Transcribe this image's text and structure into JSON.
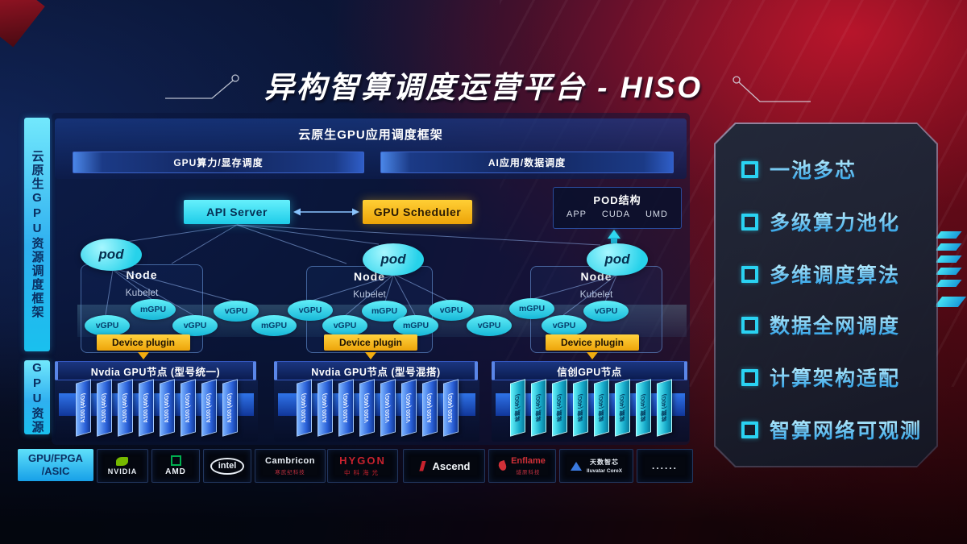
{
  "title": "异构智算调度运营平台 - HISO",
  "sidebar": {
    "frame_label": "云原生GPU资源调度框架",
    "gpu_label": "GPU资源",
    "chip_label": "GPU/FPGA\n/ASIC"
  },
  "framework": {
    "title": "云原生GPU应用调度框架",
    "bars": [
      "GPU算力/显存调度",
      "AI应用/数据调度"
    ]
  },
  "scheduler": {
    "api_server": "API Server",
    "gpu_scheduler": "GPU Scheduler"
  },
  "pod_structure": {
    "title": "POD结构",
    "items": [
      "APP",
      "CUDA",
      "UMD"
    ]
  },
  "pods": [
    "pod",
    "pod",
    "pod"
  ],
  "nodes": [
    {
      "label": "Node",
      "sub": "Kubelet",
      "device_plugin": "Device plugin"
    },
    {
      "label": "Node",
      "sub": "Kubelet",
      "device_plugin": "Device plugin"
    },
    {
      "label": "Node",
      "sub": "Kubelet",
      "device_plugin": "Device plugin"
    }
  ],
  "gpu_ellipses": [
    "vGPU",
    "mGPU",
    "vGPU",
    "vGPU",
    "mGPU",
    "vGPU",
    "vGPU",
    "mGPU",
    "mGPU",
    "vGPU",
    "vGPU",
    "mGPU",
    "vGPU",
    "vGPU"
  ],
  "gpu_rows": [
    {
      "header": "Nvdia GPU节点 (型号统一)",
      "type": "nvidia",
      "cards": [
        "A100 (40G)",
        "A100 (40G)",
        "A100 (40G)",
        "A100 (40G)",
        "A100 (40G)",
        "A100 (40G)",
        "A100 (40G)",
        "A100 (40G)"
      ]
    },
    {
      "header": "Nvdia GPU节点 (型号混搭)",
      "type": "nvidia",
      "cards": [
        "A100 (40G)",
        "A100 (40G)",
        "A100 (40G)",
        "V100 (40G)",
        "V100 (40G)",
        "V100 (40G)",
        "A100 (40G)",
        "A100 (40G)"
      ]
    },
    {
      "header": "信创GPU节点",
      "type": "domestic",
      "cards": [
        "昇腾 (40G)",
        "昇腾 (40G)",
        "昇腾 (40G)",
        "昇腾 (40G)",
        "昇腾 (40G)",
        "昇腾 (40G)",
        "昇腾 (40G)",
        "昇腾 (40G)"
      ]
    }
  ],
  "vendors": [
    {
      "name": "nvidia",
      "lines": [
        "NVIDIA"
      ]
    },
    {
      "name": "amd",
      "lines": [
        "AMD"
      ]
    },
    {
      "name": "intel",
      "lines": [
        "intel"
      ]
    },
    {
      "name": "cambricon",
      "lines": [
        "Cambricon",
        "寒武纪科技"
      ]
    },
    {
      "name": "hygon",
      "lines": [
        "HYGON",
        "中科海光"
      ]
    },
    {
      "name": "ascend",
      "lines": [
        "Ascend"
      ]
    },
    {
      "name": "enflame",
      "lines": [
        "Enflame",
        "燧原科技"
      ]
    },
    {
      "name": "iluvatar",
      "lines": [
        "天数智芯",
        "Iluvatar CoreX"
      ]
    },
    {
      "name": "more",
      "lines": [
        "......"
      ]
    }
  ],
  "features": [
    "一池多芯",
    "多级算力池化",
    "多维调度算法",
    "数据全网调度",
    "计算架构适配",
    "智算网络可观测"
  ],
  "colors": {
    "accent_cyan": "#2ad2f2",
    "accent_yellow": "#f6b60e",
    "card_blue": "#2f63d8",
    "brand_red": "#c8222e",
    "nvidia_green": "#76b900",
    "amd_green": "#00b050",
    "iluvatar_blue": "#3a7ae0"
  }
}
